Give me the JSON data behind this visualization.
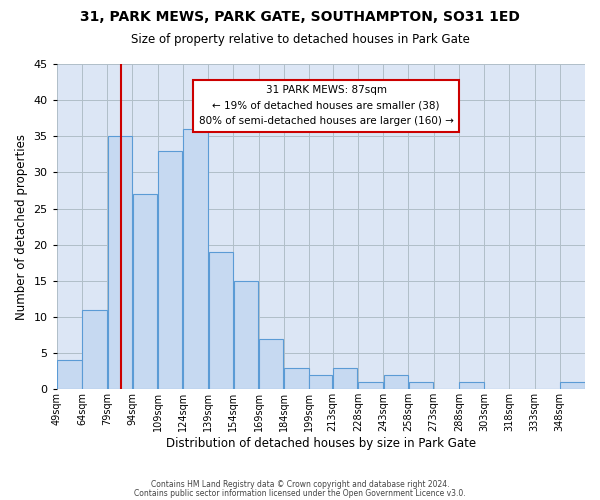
{
  "title1": "31, PARK MEWS, PARK GATE, SOUTHAMPTON, SO31 1ED",
  "title2": "Size of property relative to detached houses in Park Gate",
  "xlabel": "Distribution of detached houses by size in Park Gate",
  "ylabel": "Number of detached properties",
  "bin_labels": [
    "49sqm",
    "64sqm",
    "79sqm",
    "94sqm",
    "109sqm",
    "124sqm",
    "139sqm",
    "154sqm",
    "169sqm",
    "184sqm",
    "199sqm",
    "213sqm",
    "228sqm",
    "243sqm",
    "258sqm",
    "273sqm",
    "288sqm",
    "303sqm",
    "318sqm",
    "333sqm",
    "348sqm"
  ],
  "bar_heights": [
    4,
    11,
    35,
    27,
    33,
    36,
    19,
    15,
    7,
    3,
    2,
    3,
    1,
    2,
    1,
    0,
    1,
    0,
    0,
    0,
    1
  ],
  "bar_color": "#c6d9f1",
  "bar_edge_color": "#5b9bd5",
  "red_line_x": 87,
  "bin_edges": [
    49,
    64,
    79,
    94,
    109,
    124,
    139,
    154,
    169,
    184,
    199,
    213,
    228,
    243,
    258,
    273,
    288,
    303,
    318,
    333,
    348,
    363
  ],
  "ylim": [
    0,
    45
  ],
  "yticks": [
    0,
    5,
    10,
    15,
    20,
    25,
    30,
    35,
    40,
    45
  ],
  "annotation_title": "31 PARK MEWS: 87sqm",
  "annotation_line1": "← 19% of detached houses are smaller (38)",
  "annotation_line2": "80% of semi-detached houses are larger (160) →",
  "annotation_box_color": "#ffffff",
  "annotation_box_edge_color": "#cc0000",
  "footer1": "Contains HM Land Registry data © Crown copyright and database right 2024.",
  "footer2": "Contains public sector information licensed under the Open Government Licence v3.0.",
  "background_color": "#ffffff",
  "axes_bg_color": "#dce6f5",
  "grid_color": "#b0bec8"
}
